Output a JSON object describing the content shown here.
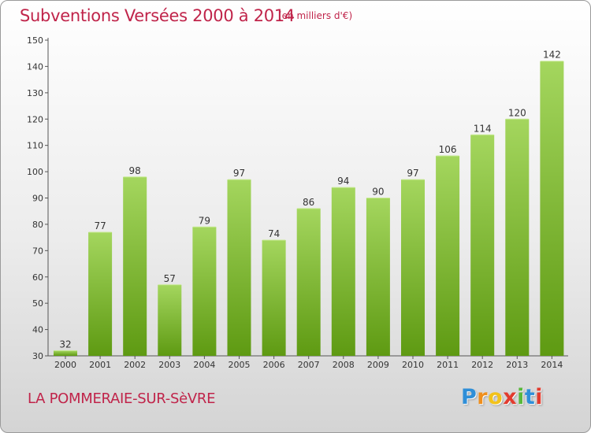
{
  "title": "Subventions Versées 2000 à 2014",
  "unit_note": "(en milliers d'€)",
  "commune": "LA POMMERAIE-SUR-SèVRE",
  "logo": {
    "text": [
      "P",
      "r",
      "o",
      "x",
      "i",
      "t",
      "i"
    ]
  },
  "colors": {
    "title": "#c0244a",
    "bar_light": "#a4d65e",
    "bar_dark": "#5e9a12",
    "axis": "#555555"
  },
  "chart_data": {
    "type": "bar",
    "categories": [
      "2000",
      "2001",
      "2002",
      "2003",
      "2004",
      "2005",
      "2006",
      "2007",
      "2008",
      "2009",
      "2010",
      "2011",
      "2012",
      "2013",
      "2014"
    ],
    "values": [
      32,
      77,
      98,
      57,
      79,
      97,
      74,
      86,
      94,
      90,
      97,
      106,
      114,
      120,
      142
    ],
    "title": "Subventions Versées 2000 à 2014",
    "ylim": [
      30,
      150
    ],
    "yticks": [
      30,
      40,
      50,
      60,
      70,
      80,
      90,
      100,
      110,
      120,
      130,
      140,
      150
    ],
    "grid": false,
    "data_labels": true
  }
}
